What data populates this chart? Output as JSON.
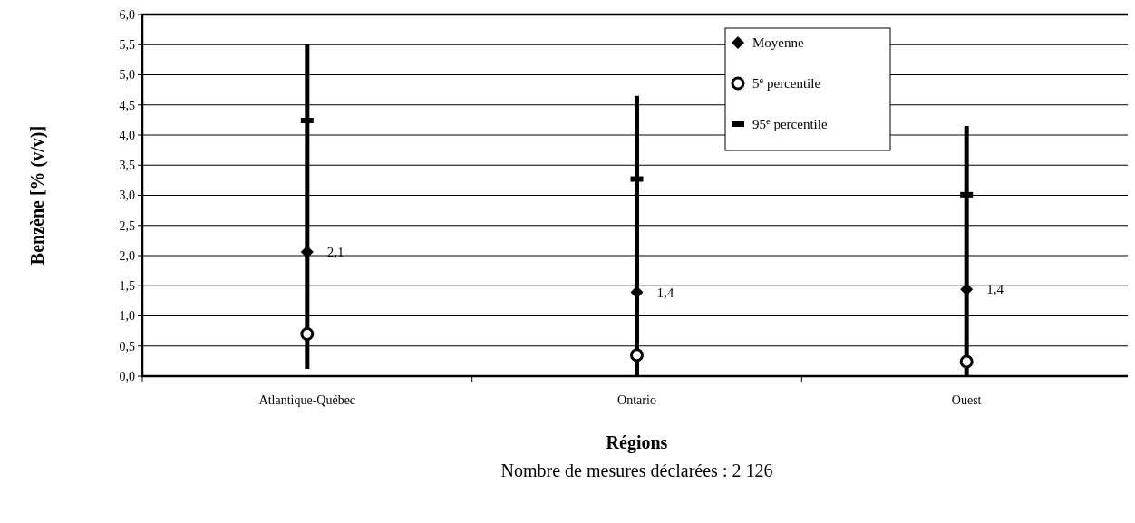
{
  "chart_data": {
    "type": "scatter",
    "xlabel": "Régions",
    "ylabel": "Benzène [% (v/v)]",
    "annotations": [
      "Nombre de mesures déclarées : 2 126"
    ],
    "categories": [
      "Atlantique-Québec",
      "Ontario",
      "Ouest"
    ],
    "ylim": [
      0,
      6
    ],
    "yticks": [
      {
        "value": 0,
        "label": "0,0"
      },
      {
        "value": 0.5,
        "label": "0,5"
      },
      {
        "value": 1,
        "label": "1,0"
      },
      {
        "value": 1.5,
        "label": "1,5"
      },
      {
        "value": 2,
        "label": "2,0"
      },
      {
        "value": 2.5,
        "label": "2,5"
      },
      {
        "value": 3,
        "label": "3,0"
      },
      {
        "value": 3.5,
        "label": "3,5"
      },
      {
        "value": 4,
        "label": "4,0"
      },
      {
        "value": 4.5,
        "label": "4,5"
      },
      {
        "value": 5,
        "label": "5,0"
      },
      {
        "value": 5.5,
        "label": "5,5"
      },
      {
        "value": 6,
        "label": "6,0"
      }
    ],
    "grid": "y",
    "legend": "top right",
    "series": [
      {
        "type": "bar",
        "color": "#000000",
        "base": [
          0.12,
          0,
          0
        ],
        "values": [
          5.39,
          4.65,
          4.15
        ]
      },
      {
        "name": "Moyenne",
        "color": "#000000",
        "marker": "diamond",
        "values": [
          2.06,
          1.39,
          1.44
        ],
        "value_labels": [
          "2,1",
          "1,4",
          "1,4"
        ]
      },
      {
        "name": "5$^{e}$ percentile",
        "color": "#000000",
        "marker": "circle",
        "values": [
          0.7,
          0.35,
          0.24
        ]
      },
      {
        "name": "95$^{e}$ percentile",
        "color": "#000000",
        "values": [
          4.24,
          3.27,
          3.01
        ]
      }
    ]
  }
}
